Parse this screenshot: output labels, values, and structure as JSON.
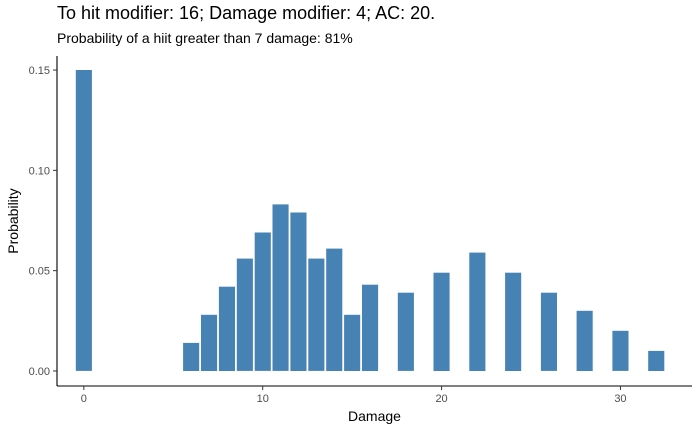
{
  "title": "To hit modifier: 16; Damage modifier: 4; AC: 20.",
  "subtitle": "Probability of a hiit greater than 7 damage: 81%",
  "chart_data": {
    "type": "bar",
    "xlabel": "Damage",
    "ylabel": "Probability",
    "x": [
      0,
      6,
      7,
      8,
      9,
      10,
      11,
      12,
      13,
      14,
      15,
      16,
      18,
      20,
      22,
      24,
      26,
      28,
      30,
      32
    ],
    "values": [
      0.15,
      0.014,
      0.028,
      0.042,
      0.056,
      0.069,
      0.083,
      0.079,
      0.056,
      0.061,
      0.028,
      0.043,
      0.039,
      0.049,
      0.059,
      0.049,
      0.039,
      0.03,
      0.02,
      0.01
    ],
    "xticks": [
      "0",
      "10",
      "20",
      "30"
    ],
    "yticks": [
      "0.00",
      "0.05",
      "0.10",
      "0.15"
    ],
    "xlim": [
      -1.5,
      34
    ],
    "ylim": [
      -0.0075,
      0.157
    ],
    "bar_color": "#4682b4",
    "grid": false
  }
}
